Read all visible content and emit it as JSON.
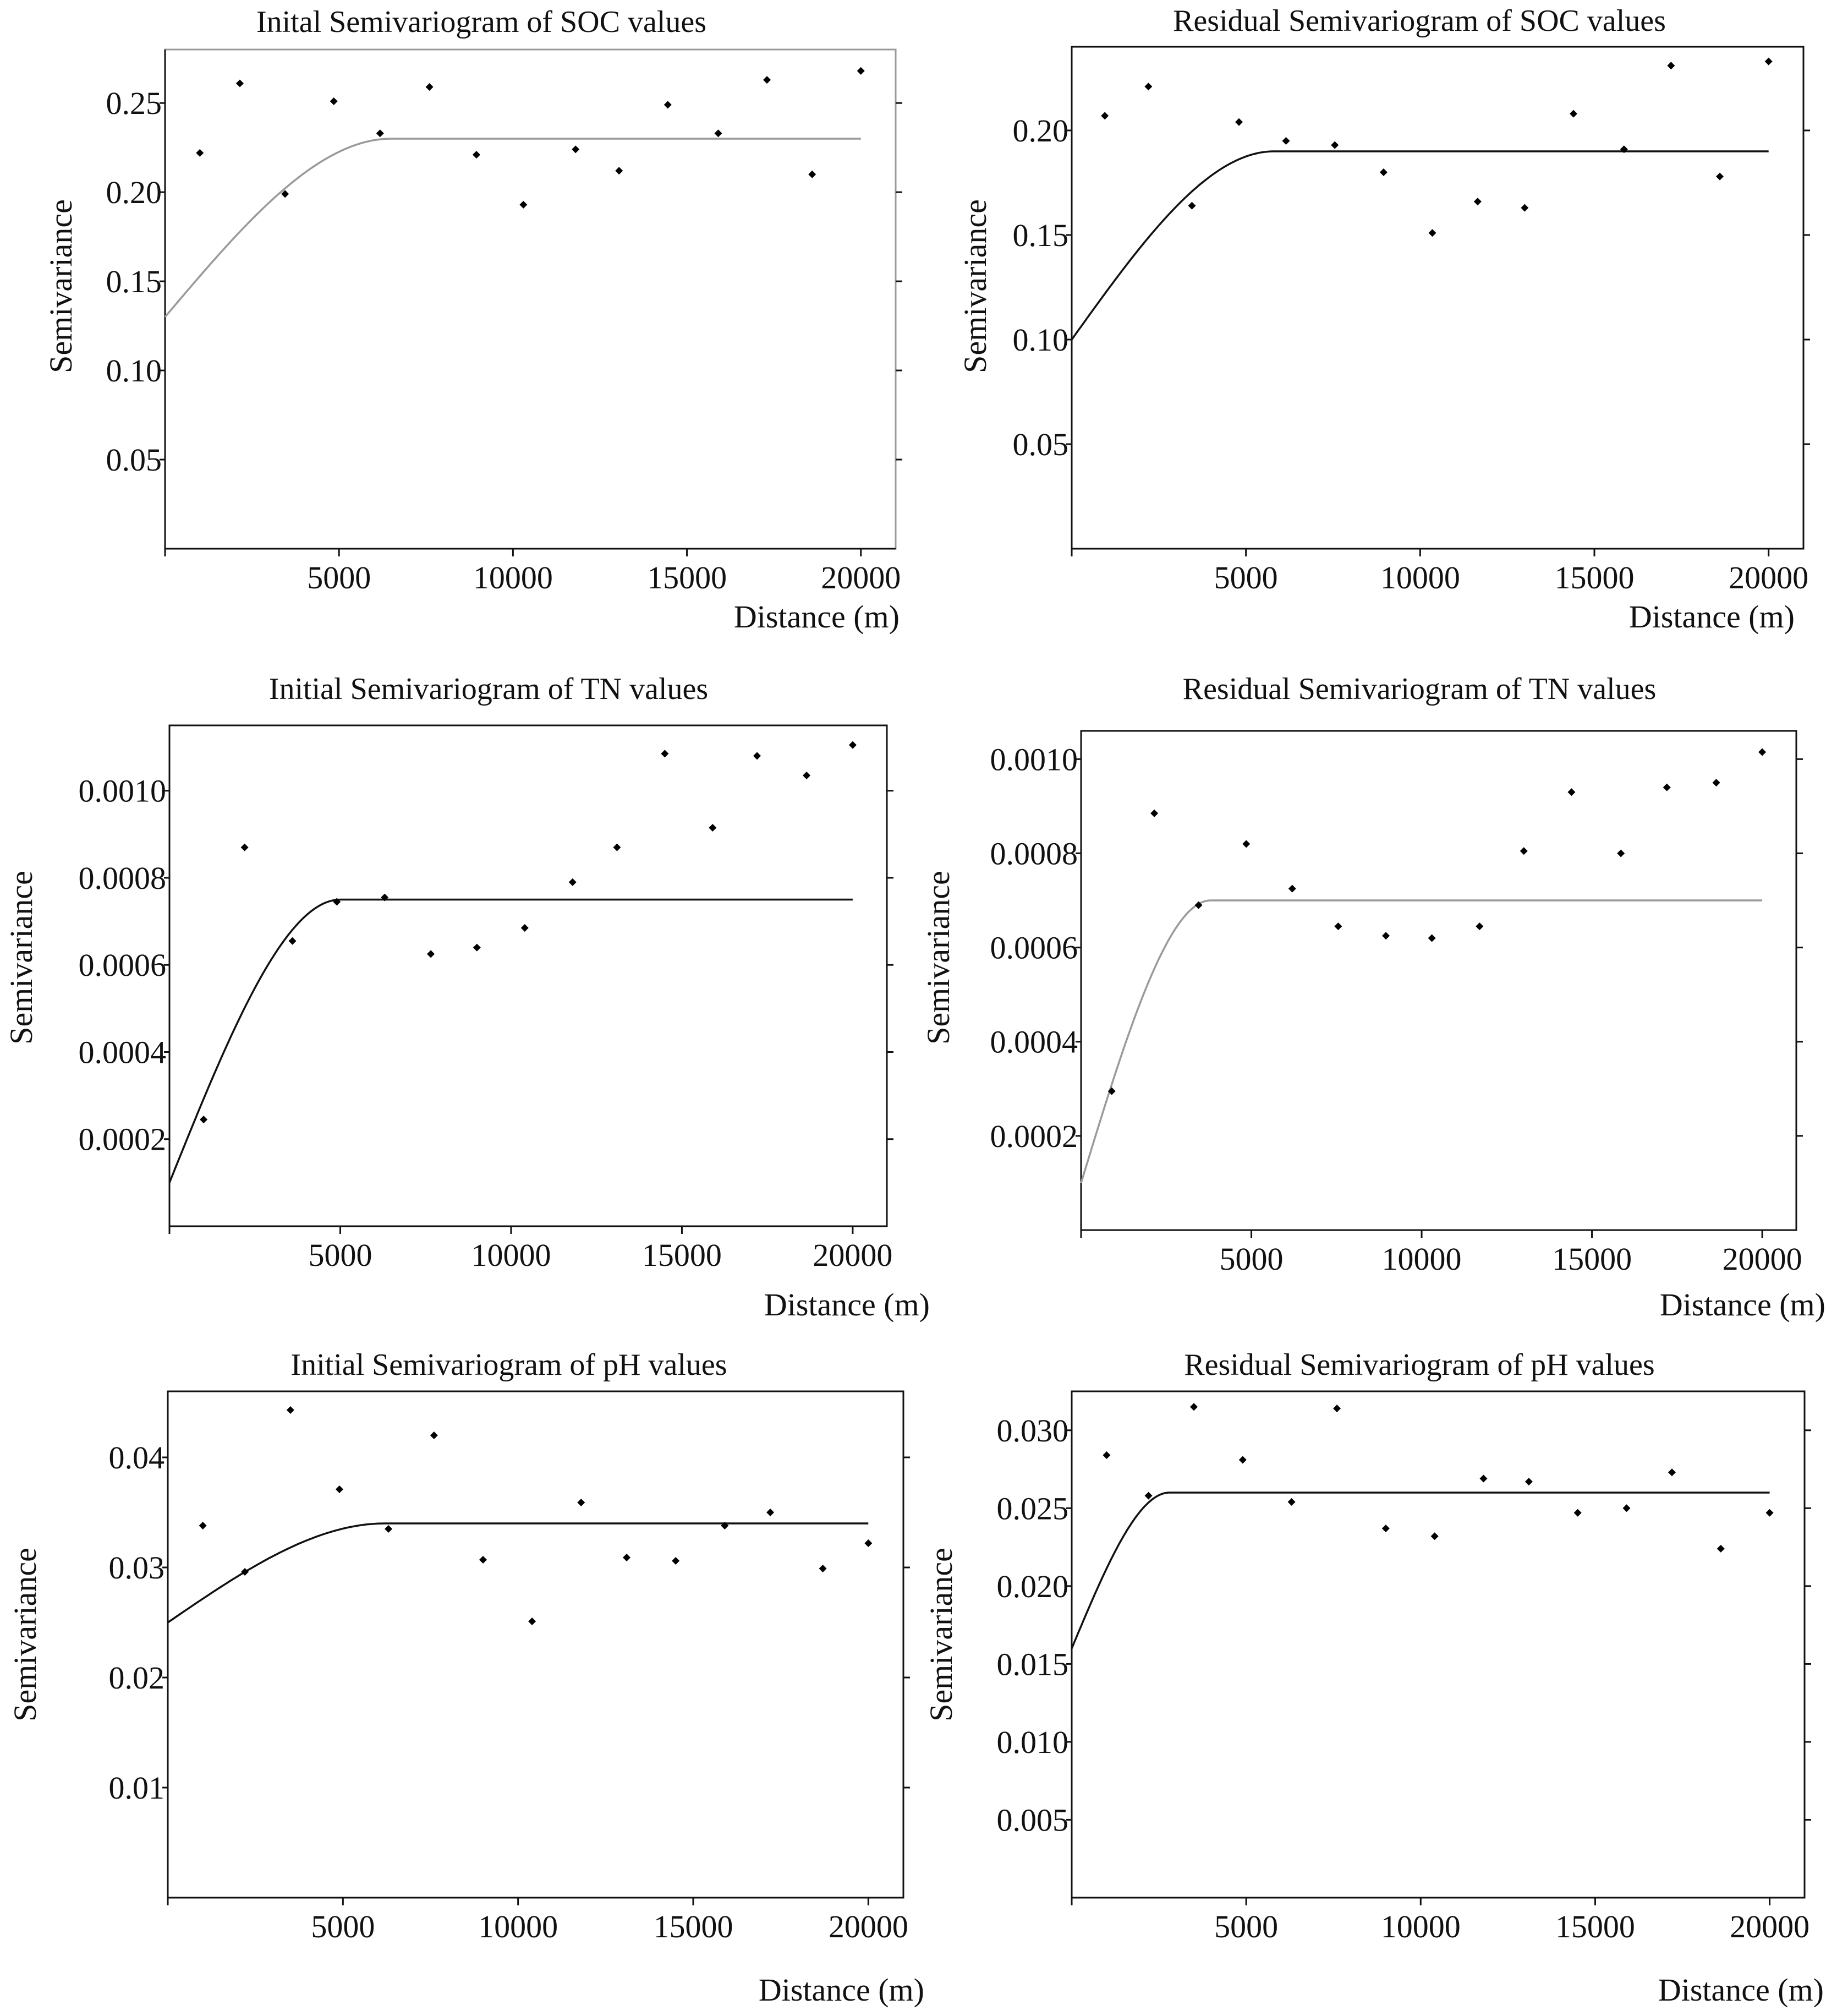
{
  "chart_data": [
    {
      "type": "scatter",
      "title": "Inital Semivariogram of SOC values",
      "xlabel": "Distance (m)",
      "ylabel": "Semivariance",
      "xlim": [
        0,
        21000
      ],
      "ylim": [
        0,
        0.28
      ],
      "xticks": [
        5000,
        10000,
        15000,
        20000
      ],
      "xtick_labels": [
        "5000",
        "10000",
        "15000",
        "20000"
      ],
      "yticks": [
        0.05,
        0.1,
        0.15,
        0.2,
        0.25
      ],
      "ytick_labels": [
        "0.05",
        "0.10",
        "0.15",
        "0.20",
        "0.25"
      ],
      "points": [
        [
          1000,
          0.222
        ],
        [
          2150,
          0.261
        ],
        [
          3450,
          0.199
        ],
        [
          4850,
          0.251
        ],
        [
          6180,
          0.233
        ],
        [
          7600,
          0.259
        ],
        [
          8950,
          0.221
        ],
        [
          10300,
          0.193
        ],
        [
          11800,
          0.224
        ],
        [
          13050,
          0.212
        ],
        [
          14450,
          0.249
        ],
        [
          15900,
          0.233
        ],
        [
          17300,
          0.263
        ],
        [
          18600,
          0.21
        ],
        [
          20000,
          0.268
        ]
      ],
      "model": {
        "nugget": 0.13,
        "sill": 0.23,
        "range": 6500,
        "x_end": 20000
      }
    },
    {
      "type": "scatter",
      "title": "Residual Semivariogram of SOC values",
      "xlabel": "Distance (m)",
      "ylabel": "Semivariance",
      "xlim": [
        0,
        21000
      ],
      "ylim": [
        0,
        0.24
      ],
      "xticks": [
        5000,
        10000,
        15000,
        20000
      ],
      "xtick_labels": [
        "5000",
        "10000",
        "15000",
        "20000"
      ],
      "yticks": [
        0.05,
        0.1,
        0.15,
        0.2
      ],
      "ytick_labels": [
        "0.05",
        "0.10",
        "0.15",
        "0.20"
      ],
      "points": [
        [
          950,
          0.207
        ],
        [
          2200,
          0.221
        ],
        [
          3450,
          0.164
        ],
        [
          4800,
          0.204
        ],
        [
          6150,
          0.195
        ],
        [
          7550,
          0.193
        ],
        [
          8950,
          0.18
        ],
        [
          10350,
          0.151
        ],
        [
          11650,
          0.166
        ],
        [
          13000,
          0.163
        ],
        [
          14400,
          0.208
        ],
        [
          15850,
          0.191
        ],
        [
          17200,
          0.231
        ],
        [
          18600,
          0.178
        ],
        [
          20000,
          0.233
        ]
      ],
      "model": {
        "nugget": 0.1,
        "sill": 0.19,
        "range": 5800,
        "x_end": 20000
      }
    },
    {
      "type": "scatter",
      "title": "Initial Semivariogram of TN values",
      "xlabel": "Distance (m)",
      "ylabel": "Semivariance",
      "xlim": [
        0,
        21000
      ],
      "ylim": [
        0,
        0.00115
      ],
      "xticks": [
        5000,
        10000,
        15000,
        20000
      ],
      "xtick_labels": [
        "5000",
        "10000",
        "15000",
        "20000"
      ],
      "yticks": [
        0.0002,
        0.0004,
        0.0006,
        0.0008,
        0.001
      ],
      "ytick_labels": [
        "0.0002",
        "0.0004",
        "0.0006",
        "0.0008",
        "0.0010"
      ],
      "points": [
        [
          1000,
          0.000245
        ],
        [
          2200,
          0.00087
        ],
        [
          3600,
          0.000655
        ],
        [
          4900,
          0.000745
        ],
        [
          6300,
          0.000755
        ],
        [
          7650,
          0.000625
        ],
        [
          9000,
          0.00064
        ],
        [
          10400,
          0.000685
        ],
        [
          11800,
          0.00079
        ],
        [
          13100,
          0.00087
        ],
        [
          14500,
          0.001085
        ],
        [
          15900,
          0.000915
        ],
        [
          17200,
          0.00108
        ],
        [
          18650,
          0.001035
        ],
        [
          20000,
          0.001105
        ]
      ],
      "model": {
        "nugget": 0.0001,
        "sill": 0.00075,
        "range": 5000,
        "x_end": 20000
      }
    },
    {
      "type": "scatter",
      "title": "Residual Semivariogram of TN values",
      "xlabel": "Distance (m)",
      "ylabel": "Semivariance",
      "xlim": [
        0,
        21000
      ],
      "ylim": [
        0,
        0.00106
      ],
      "xticks": [
        5000,
        10000,
        15000,
        20000
      ],
      "xtick_labels": [
        "5000",
        "10000",
        "15000",
        "20000"
      ],
      "yticks": [
        0.0002,
        0.0004,
        0.0006,
        0.0008,
        0.001
      ],
      "ytick_labels": [
        "0.0002",
        "0.0004",
        "0.0006",
        "0.0008",
        "0.0010"
      ],
      "points": [
        [
          900,
          0.000295
        ],
        [
          2150,
          0.000885
        ],
        [
          3450,
          0.00069
        ],
        [
          4850,
          0.00082
        ],
        [
          6200,
          0.000725
        ],
        [
          7550,
          0.000645
        ],
        [
          8950,
          0.000625
        ],
        [
          10300,
          0.00062
        ],
        [
          11700,
          0.000645
        ],
        [
          13000,
          0.000805
        ],
        [
          14400,
          0.00093
        ],
        [
          15850,
          0.0008
        ],
        [
          17200,
          0.00094
        ],
        [
          18650,
          0.00095
        ],
        [
          20000,
          0.001015
        ]
      ],
      "model": {
        "nugget": 0.0001,
        "sill": 0.0007,
        "range": 3800,
        "x_end": 20000
      }
    },
    {
      "type": "scatter",
      "title": "Initial Semivariogram of pH values",
      "xlabel": "Distance (m)",
      "ylabel": "Semivariance",
      "xlim": [
        0,
        21000
      ],
      "ylim": [
        0,
        0.046
      ],
      "xticks": [
        5000,
        10000,
        15000,
        20000
      ],
      "xtick_labels": [
        "5000",
        "10000",
        "15000",
        "20000"
      ],
      "yticks": [
        0.01,
        0.02,
        0.03,
        0.04
      ],
      "ytick_labels": [
        "0.01",
        "0.02",
        "0.03",
        "0.04"
      ],
      "points": [
        [
          1000,
          0.0338
        ],
        [
          2200,
          0.0296
        ],
        [
          3500,
          0.0443
        ],
        [
          4900,
          0.0371
        ],
        [
          6300,
          0.0335
        ],
        [
          7600,
          0.042
        ],
        [
          9000,
          0.0307
        ],
        [
          10400,
          0.0251
        ],
        [
          11800,
          0.0359
        ],
        [
          13100,
          0.0309
        ],
        [
          14500,
          0.0306
        ],
        [
          15900,
          0.0338
        ],
        [
          17200,
          0.035
        ],
        [
          18700,
          0.0299
        ],
        [
          20000,
          0.0322
        ]
      ],
      "model": {
        "nugget": 0.025,
        "sill": 0.034,
        "range": 6200,
        "x_end": 20000
      }
    },
    {
      "type": "scatter",
      "title": "Residual Semivariogram of pH values",
      "xlabel": "Distance (m)",
      "ylabel": "Semivariance",
      "xlim": [
        0,
        21000
      ],
      "ylim": [
        0,
        0.0325
      ],
      "xticks": [
        5000,
        10000,
        15000,
        20000
      ],
      "xtick_labels": [
        "5000",
        "10000",
        "15000",
        "20000"
      ],
      "yticks": [
        0.005,
        0.01,
        0.015,
        0.02,
        0.025,
        0.03
      ],
      "ytick_labels": [
        "0.005",
        "0.010",
        "0.015",
        "0.020",
        "0.025",
        "0.030"
      ],
      "points": [
        [
          1000,
          0.0284
        ],
        [
          2200,
          0.0258
        ],
        [
          3500,
          0.0315
        ],
        [
          4900,
          0.0281
        ],
        [
          6300,
          0.0254
        ],
        [
          7600,
          0.0314
        ],
        [
          9000,
          0.0237
        ],
        [
          10400,
          0.0232
        ],
        [
          11800,
          0.0269
        ],
        [
          13100,
          0.0267
        ],
        [
          14500,
          0.0247
        ],
        [
          15900,
          0.025
        ],
        [
          17200,
          0.0273
        ],
        [
          18600,
          0.0224
        ],
        [
          20000,
          0.0247
        ]
      ],
      "model": {
        "nugget": 0.016,
        "sill": 0.026,
        "range": 2800,
        "x_end": 20000
      }
    }
  ],
  "colors": {
    "axis": "#111111",
    "frame_gray": "#9a9a9a",
    "model_line": "#111111",
    "model_line_gray": "#9a9a9a",
    "marker": "#000000"
  }
}
